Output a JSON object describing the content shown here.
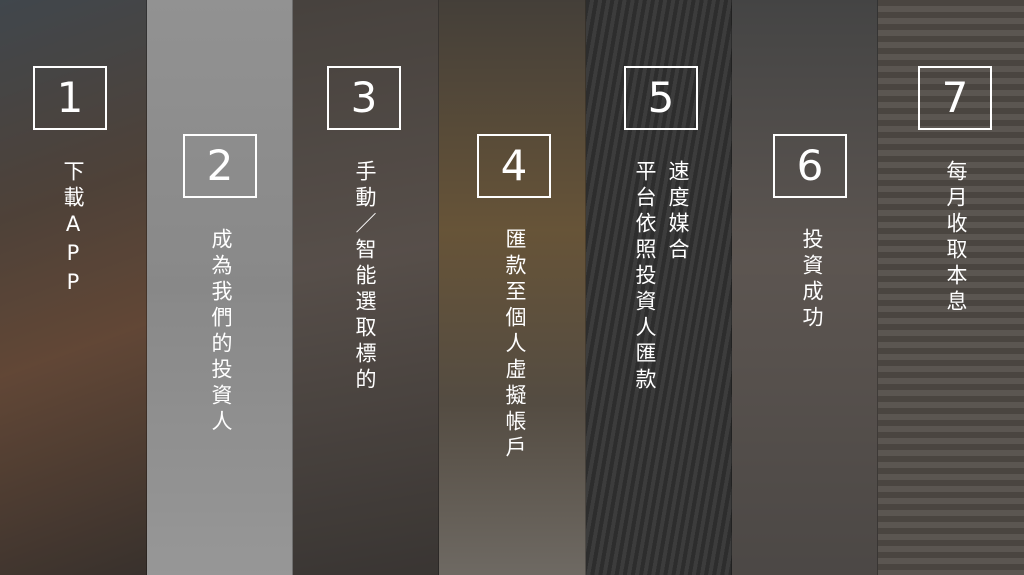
{
  "steps": [
    {
      "number": "1",
      "lines": [
        "下載APP"
      ]
    },
    {
      "number": "2",
      "lines": [
        "成為我們的投資人"
      ]
    },
    {
      "number": "3",
      "lines": [
        "手動／智能選取標的"
      ]
    },
    {
      "number": "4",
      "lines": [
        "匯款至個人虛擬帳戶"
      ]
    },
    {
      "number": "5",
      "lines": [
        "速度媒合",
        "平台依照投資人匯款"
      ]
    },
    {
      "number": "6",
      "lines": [
        "投資成功"
      ]
    },
    {
      "number": "7",
      "lines": [
        "每月收取本息"
      ]
    }
  ],
  "colors": {
    "text": "#ffffff",
    "box_border": "#ffffff"
  }
}
